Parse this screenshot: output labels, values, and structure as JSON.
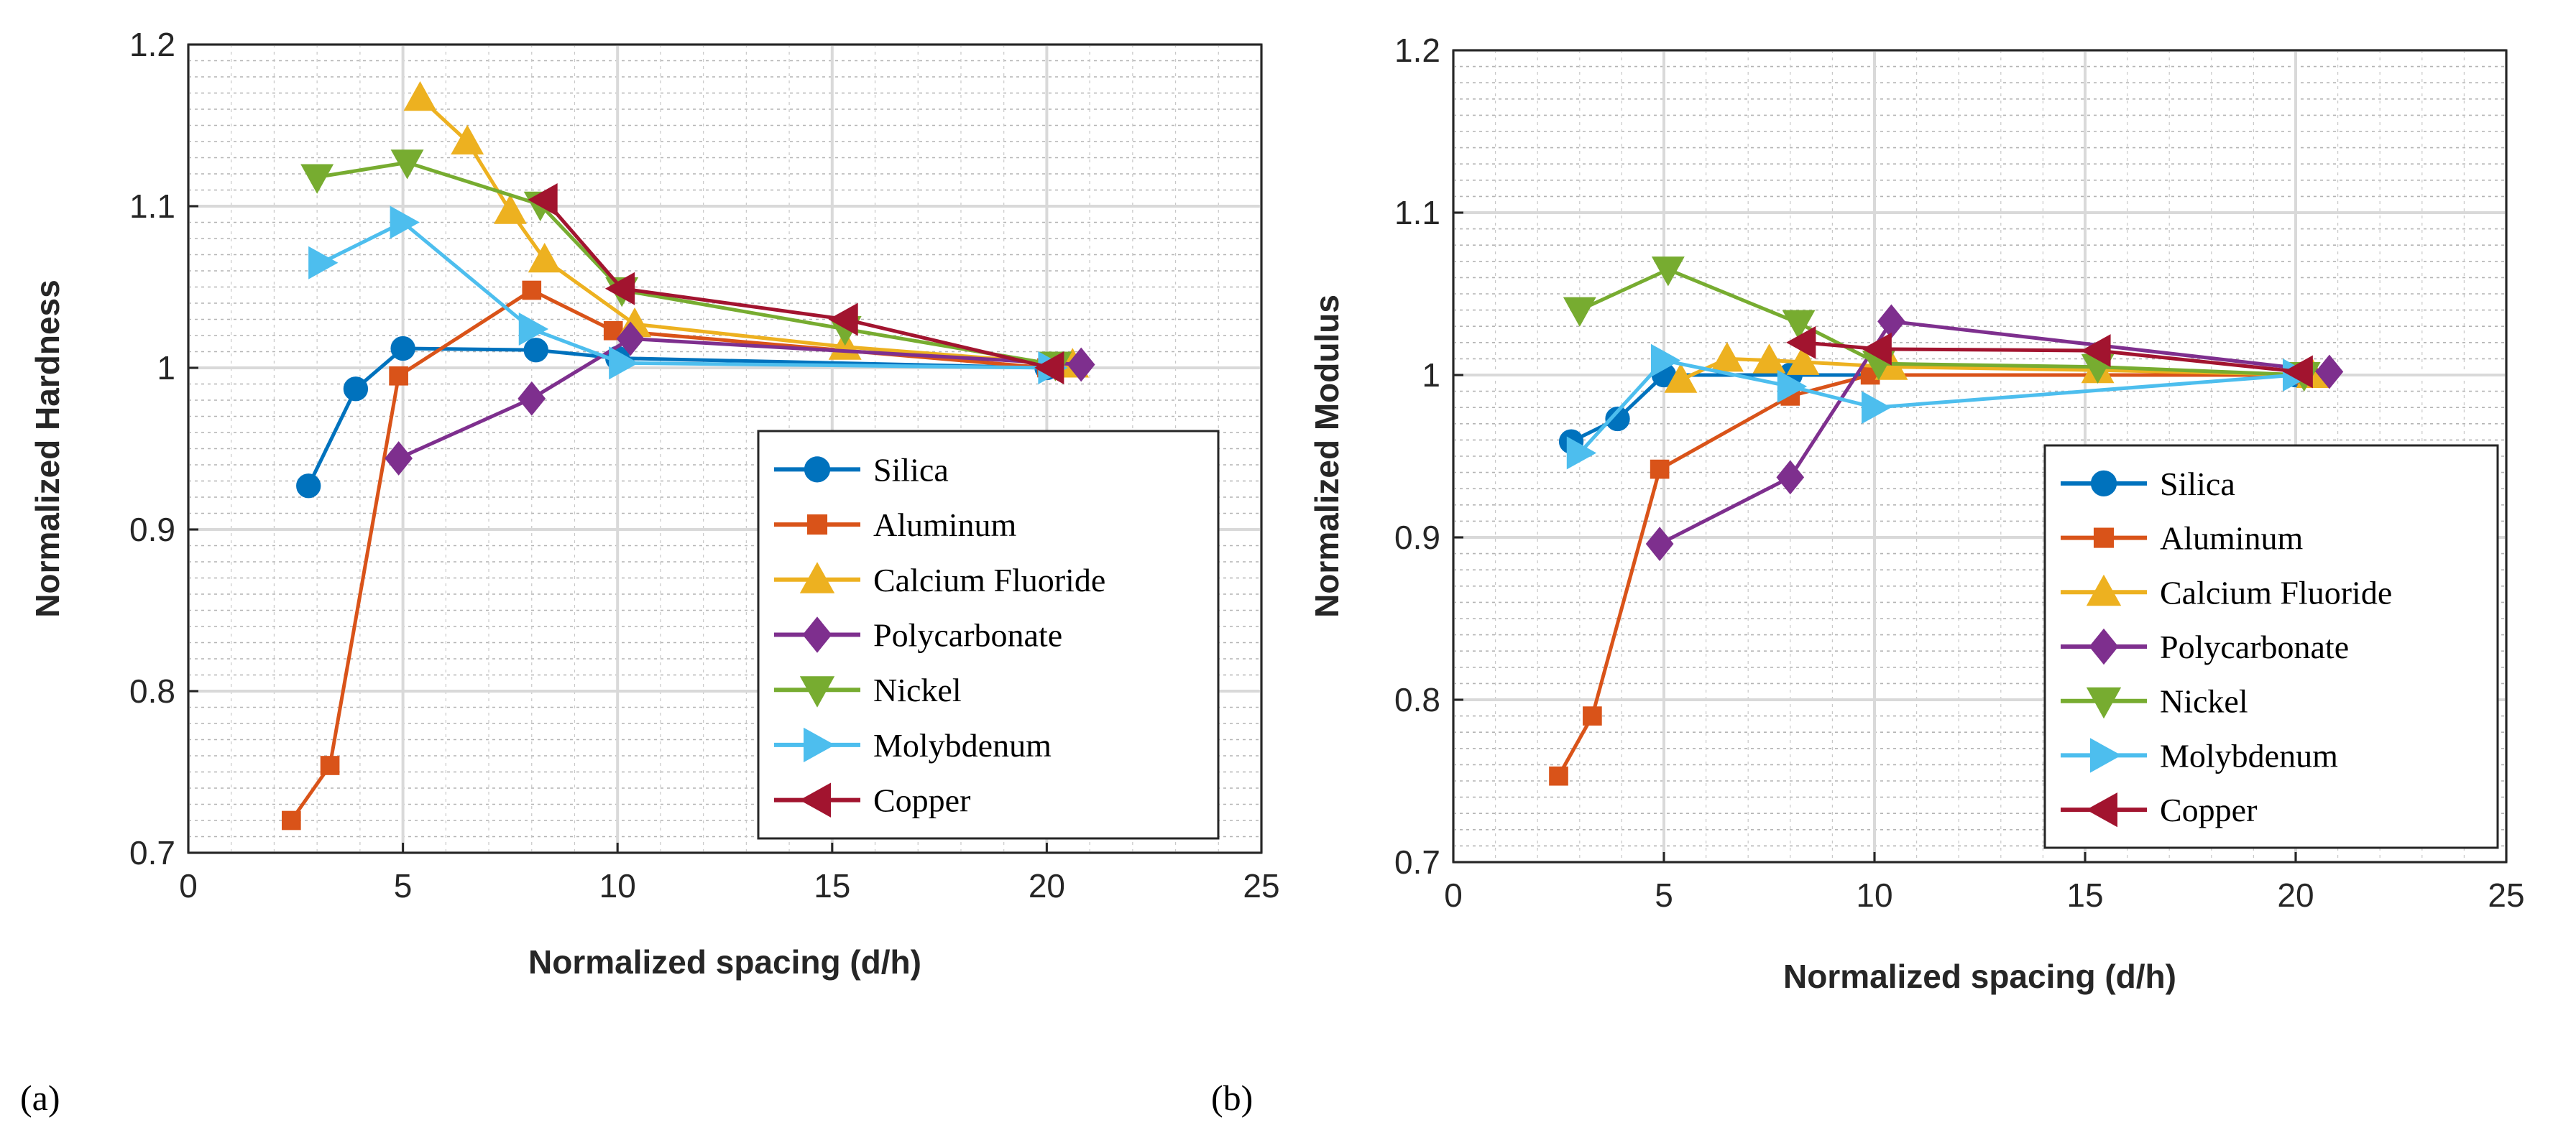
{
  "chart_data": [
    {
      "type": "line",
      "panel_label": "(a)",
      "xlabel": "Normalized spacing (d/h)",
      "ylabel": "Normalized Hardness",
      "xlim": [
        0,
        25
      ],
      "ylim": [
        0.7,
        1.2
      ],
      "xticks": [
        0,
        5,
        10,
        15,
        20,
        25
      ],
      "xtick_labels": [
        "0",
        "5",
        "10",
        "15",
        "20",
        "25"
      ],
      "yticks": [
        0.7,
        0.8,
        0.9,
        1.0,
        1.1,
        1.2
      ],
      "ytick_labels": [
        "0.7",
        "0.8",
        "0.9",
        "1",
        "1.1",
        "1.2"
      ],
      "grid": "on (major + minor)",
      "legend_position": "bottom-right",
      "series": [
        {
          "name": "Silica",
          "color": "#0072BD",
          "marker": "circle",
          "x": [
            2.8,
            3.9,
            5.0,
            8.1,
            10.0,
            20.0
          ],
          "y": [
            0.927,
            0.987,
            1.012,
            1.011,
            1.006,
            1.0
          ]
        },
        {
          "name": "Aluminum",
          "color": "#D95319",
          "marker": "square",
          "x": [
            2.4,
            3.3,
            4.9,
            8.0,
            9.9,
            20.0
          ],
          "y": [
            0.72,
            0.754,
            0.995,
            1.048,
            1.023,
            1.0
          ]
        },
        {
          "name": "Calcium Fluoride",
          "color": "#EDB120",
          "marker": "triangle-up",
          "x": [
            5.4,
            6.5,
            7.5,
            8.3,
            10.4,
            15.3,
            20.6
          ],
          "y": [
            1.167,
            1.14,
            1.097,
            1.067,
            1.027,
            1.013,
            1.002
          ]
        },
        {
          "name": "Polycarbonate",
          "color": "#7E2F8E",
          "marker": "diamond",
          "x": [
            4.9,
            8.0,
            10.3,
            20.8
          ],
          "y": [
            0.944,
            0.981,
            1.018,
            1.002
          ]
        },
        {
          "name": "Nickel",
          "color": "#77AC30",
          "marker": "triangle-down",
          "x": [
            3.0,
            5.1,
            8.2,
            10.1,
            15.3,
            20.2
          ],
          "y": [
            1.118,
            1.127,
            1.101,
            1.048,
            1.024,
            1.002
          ]
        },
        {
          "name": "Molybdenum",
          "color": "#4DBEEE",
          "marker": "triangle-right",
          "x": [
            3.1,
            5.0,
            8.0,
            10.1,
            20.1
          ],
          "y": [
            1.065,
            1.09,
            1.024,
            1.003,
            1.0
          ]
        },
        {
          "name": "Copper",
          "color": "#A2142F",
          "marker": "triangle-left",
          "x": [
            8.3,
            10.1,
            15.3,
            20.1
          ],
          "y": [
            1.104,
            1.049,
            1.03,
            1.0
          ]
        }
      ]
    },
    {
      "type": "line",
      "panel_label": "(b)",
      "xlabel": "Normalized spacing (d/h)",
      "ylabel": "Normalized Modulus",
      "xlim": [
        0,
        25
      ],
      "ylim": [
        0.7,
        1.2
      ],
      "xticks": [
        0,
        5,
        10,
        15,
        20,
        25
      ],
      "xtick_labels": [
        "0",
        "5",
        "10",
        "15",
        "20",
        "25"
      ],
      "yticks": [
        0.7,
        0.8,
        0.9,
        1.0,
        1.1,
        1.2
      ],
      "ytick_labels": [
        "0.7",
        "0.8",
        "0.9",
        "1",
        "1.1",
        "1.2"
      ],
      "grid": "on (major + minor)",
      "legend_position": "bottom-right",
      "series": [
        {
          "name": "Silica",
          "color": "#0072BD",
          "marker": "circle",
          "x": [
            2.8,
            3.9,
            5.0,
            8.0,
            20.0
          ],
          "y": [
            0.959,
            0.973,
            1.0,
            1.0,
            1.0
          ]
        },
        {
          "name": "Aluminum",
          "color": "#D95319",
          "marker": "square",
          "x": [
            2.5,
            3.3,
            4.9,
            8.0,
            9.9,
            20.0
          ],
          "y": [
            0.753,
            0.79,
            0.942,
            0.987,
            1.0,
            1.0
          ]
        },
        {
          "name": "Calcium Fluoride",
          "color": "#EDB120",
          "marker": "triangle-up",
          "x": [
            5.4,
            6.5,
            7.5,
            8.3,
            10.4,
            15.3,
            20.4
          ],
          "y": [
            0.997,
            1.01,
            1.009,
            1.008,
            1.005,
            1.003,
            1.0
          ]
        },
        {
          "name": "Polycarbonate",
          "color": "#7E2F8E",
          "marker": "diamond",
          "x": [
            4.9,
            8.0,
            10.4,
            20.8
          ],
          "y": [
            0.896,
            0.937,
            1.033,
            1.002
          ]
        },
        {
          "name": "Nickel",
          "color": "#77AC30",
          "marker": "triangle-down",
          "x": [
            3.0,
            5.1,
            8.2,
            10.1,
            15.3,
            20.2
          ],
          "y": [
            1.04,
            1.065,
            1.032,
            1.007,
            1.005,
            1.0
          ]
        },
        {
          "name": "Molybdenum",
          "color": "#4DBEEE",
          "marker": "triangle-right",
          "x": [
            3.0,
            5.0,
            8.0,
            10.0,
            20.0
          ],
          "y": [
            0.952,
            1.009,
            0.993,
            0.98,
            1.0
          ]
        },
        {
          "name": "Copper",
          "color": "#A2142F",
          "marker": "triangle-left",
          "x": [
            8.3,
            10.1,
            15.3,
            20.1
          ],
          "y": [
            1.02,
            1.016,
            1.015,
            1.002
          ]
        }
      ]
    }
  ]
}
